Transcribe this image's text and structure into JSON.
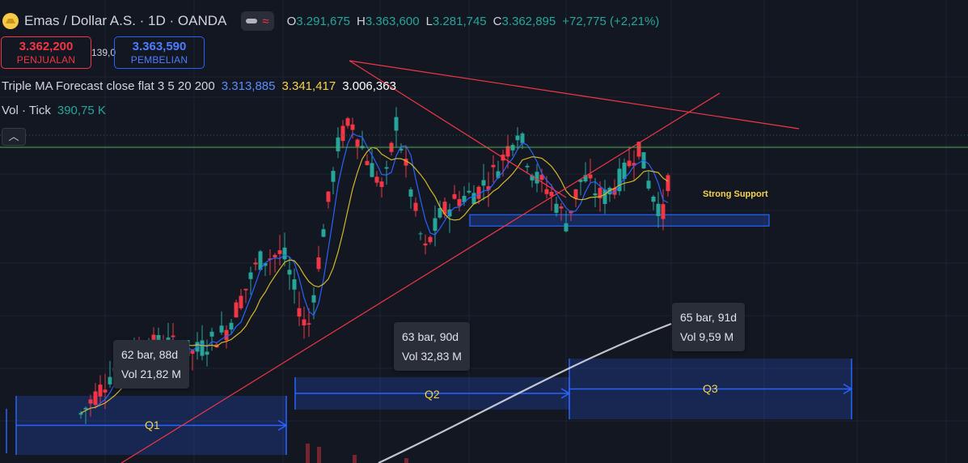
{
  "header": {
    "symbol_title": "Emas / Dollar A.S. · 1D · OANDA",
    "ohlc": [
      {
        "key": "O",
        "value": "3.291,675"
      },
      {
        "key": "H",
        "value": "3.363,600"
      },
      {
        "key": "L",
        "value": "3.281,745"
      },
      {
        "key": "C",
        "value": "3.362,895"
      }
    ],
    "change": "+72,775 (+2,21%)"
  },
  "trade": {
    "sell_price": "3.362,200",
    "sell_label": "PENJUALAN",
    "spread": "139,0",
    "buy_price": "3.363,590",
    "buy_label": "PEMBELIAN"
  },
  "indicator": {
    "name": "Triple MA Forecast close flat 3 5 20 200",
    "values": [
      "3.313,885",
      "3.341,417",
      "3.006,363"
    ]
  },
  "volume": {
    "name": "Vol · Tick",
    "value": "390,75 K"
  },
  "tooltips": [
    {
      "line1": "62 bar, 88d",
      "line2": "Vol 21,82 M"
    },
    {
      "line1": "63 bar, 90d",
      "line2": "Vol 32,83 M"
    },
    {
      "line1": "65 bar, 91d",
      "line2": "Vol 9,59 M"
    }
  ],
  "annotations": {
    "support_label": "Strong Support",
    "ranges": [
      "Q1",
      "Q2",
      "Q3"
    ]
  },
  "colors": {
    "background": "#131722",
    "up": "#26a69a",
    "down": "#f23645",
    "ma_fast": "#2962ff",
    "ma_mid": "#d4b82a",
    "ma_slow": "#e0e3eb",
    "trendline": "#f23645",
    "range_box": "#2962ff",
    "current_price_line": "#4caf50"
  },
  "chart_data": {
    "type": "candlestick",
    "timeframe": "1D",
    "latest": {
      "open": 3291.675,
      "high": 3363.6,
      "low": 3281.745,
      "close": 3362.895
    },
    "ma_values": {
      "ma20": 3313.885,
      "ma5": 3341.417,
      "ma200": 3006.363
    },
    "support_zone": {
      "from": 3245,
      "to": 3285
    },
    "ranges": [
      {
        "label": "Q1",
        "bars": 62,
        "days": 88,
        "volume": "21,82 M"
      },
      {
        "label": "Q2",
        "bars": 63,
        "days": 90,
        "volume": "32,83 M"
      },
      {
        "label": "Q3",
        "bars": 65,
        "days": 91,
        "volume": "9,59 M"
      }
    ]
  }
}
